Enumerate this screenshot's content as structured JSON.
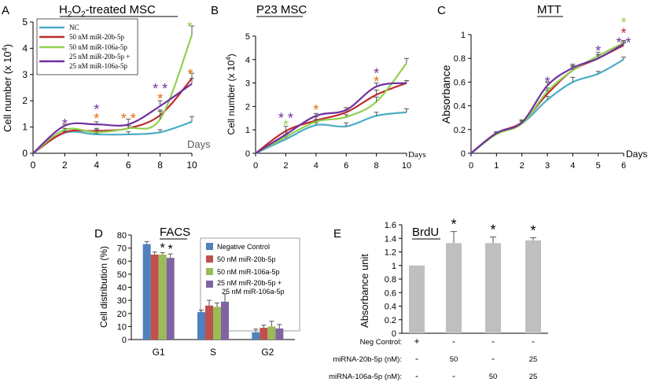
{
  "colors": {
    "nc": "#4bacc6",
    "r20b": "#c0282d",
    "r106a": "#92d050",
    "combo": "#7030a0",
    "orange": "#e46c0a",
    "fneg": "#4f81bd",
    "fr20b": "#c0504d",
    "fr106a": "#9bbb59",
    "fcombo": "#8064a2",
    "bar": "#bfbfbf"
  },
  "chart_data": [
    {
      "panel": "A",
      "type": "line",
      "title": "H2O2-treated MSC",
      "title_base": "H",
      "title_sub1": "2",
      "title_mid": "O",
      "title_sub2": "2",
      "title_rest": "-treated MSC",
      "ylabel": "Cell number (x 10",
      "ylabel_exp": "4",
      "ylabel_close": ")",
      "xlabel": "Days",
      "x": [
        0,
        2,
        4,
        6,
        8,
        10
      ],
      "xlim": [
        0,
        10
      ],
      "ylim": [
        0,
        5
      ],
      "xticks": [
        "0",
        "2",
        "4",
        "6",
        "8",
        "10"
      ],
      "yticks": [
        "0",
        "1",
        "2",
        "3",
        "4",
        "5"
      ],
      "legend": [
        "NC",
        "50 nM miR-20b-5p",
        "50 nM miR-106a-5p",
        "25 nM miR-20b-5p +",
        "25 nM miR-106a-5p"
      ],
      "series": [
        {
          "name": "NC",
          "color_key": "nc",
          "values": [
            0,
            0.78,
            0.72,
            0.72,
            0.8,
            1.2
          ],
          "err": [
            0,
            0.05,
            0.05,
            0.1,
            0.1,
            0.2
          ]
        },
        {
          "name": "50 nM miR-20b-5p",
          "color_key": "r20b",
          "values": [
            0,
            0.8,
            0.85,
            0.95,
            1.45,
            2.85
          ],
          "err": [
            0,
            0.05,
            0.1,
            0.1,
            0.2,
            0.2
          ]
        },
        {
          "name": "50 nM miR-106a-5p",
          "color_key": "r106a",
          "values": [
            0,
            0.9,
            0.8,
            0.95,
            1.3,
            4.5
          ],
          "err": [
            0,
            0.05,
            0.1,
            0.1,
            0.3,
            0.35
          ]
        },
        {
          "name": "25 nM miR-20b-5p + 25 nM miR-106a-5p",
          "color_key": "combo",
          "values": [
            0,
            1.05,
            1.1,
            1.1,
            1.8,
            2.65
          ],
          "err": [
            0,
            0.05,
            0.1,
            0.2,
            0.2,
            0.2
          ]
        }
      ],
      "stars": [
        {
          "x": 2,
          "y": 1.2,
          "text": "*",
          "color_key": "combo"
        },
        {
          "x": 4,
          "y": 1.75,
          "text": "*",
          "color_key": "combo"
        },
        {
          "x": 4,
          "y": 1.4,
          "text": "*",
          "color_key": "orange"
        },
        {
          "x": 6,
          "y": 1.4,
          "text": "* *",
          "color_key": "orange"
        },
        {
          "x": 8,
          "y": 2.55,
          "text": "* *",
          "color_key": "combo"
        },
        {
          "x": 8,
          "y": 2.15,
          "text": "*",
          "color_key": "orange"
        },
        {
          "x": 9.9,
          "y": 3.1,
          "text": "*",
          "color_key": "orange"
        },
        {
          "x": 9.85,
          "y": 4.9,
          "text": "*",
          "color_key": "r106a"
        }
      ]
    },
    {
      "panel": "B",
      "type": "line",
      "title": "P23 MSC",
      "ylabel": "Cell number (x 10",
      "ylabel_exp": "4",
      "ylabel_close": ")",
      "xlabel": "Days",
      "x": [
        0,
        2,
        4,
        6,
        8,
        10
      ],
      "xlim": [
        0,
        10
      ],
      "ylim": [
        0,
        5
      ],
      "xticks": [
        "0",
        "2",
        "4",
        "6",
        "8",
        "10"
      ],
      "yticks": [
        "0",
        "1",
        "2",
        "3",
        "4",
        "5"
      ],
      "series": [
        {
          "name": "NC",
          "color_key": "nc",
          "values": [
            0,
            0.6,
            1.2,
            1.15,
            1.6,
            1.75
          ],
          "err": [
            0,
            0.1,
            0.1,
            0.15,
            0.15,
            0.15
          ]
        },
        {
          "name": "50 nM miR-20b-5p",
          "color_key": "r20b",
          "values": [
            0,
            0.95,
            1.4,
            1.75,
            2.5,
            3.0
          ],
          "err": [
            0,
            0.2,
            0.15,
            0.1,
            0.2,
            0.1
          ]
        },
        {
          "name": "50 nM miR-106a-5p",
          "color_key": "r106a",
          "values": [
            0,
            0.7,
            1.35,
            1.55,
            2.2,
            3.85
          ],
          "err": [
            0,
            0.1,
            0.1,
            0.1,
            0.2,
            0.2
          ]
        },
        {
          "name": "25 nM miR-20b-5p + 25 nM miR-106a-5p",
          "color_key": "combo",
          "values": [
            0,
            0.8,
            1.6,
            1.85,
            2.85,
            3.0
          ],
          "err": [
            0,
            0.1,
            0.1,
            0.1,
            0.15,
            0.1
          ]
        }
      ],
      "stars": [
        {
          "x": 2,
          "y": 1.6,
          "text": "* *",
          "color_key": "combo"
        },
        {
          "x": 2,
          "y": 1.3,
          "text": "*",
          "color_key": "r106a"
        },
        {
          "x": 4,
          "y": 1.95,
          "text": "*",
          "color_key": "orange"
        },
        {
          "x": 8,
          "y": 3.5,
          "text": "*",
          "color_key": "combo"
        },
        {
          "x": 8,
          "y": 3.15,
          "text": "*",
          "color_key": "orange"
        }
      ]
    },
    {
      "panel": "C",
      "type": "line",
      "title": "MTT",
      "ylabel": "Absorbance",
      "xlabel": "Days",
      "x": [
        0,
        1,
        2,
        3,
        4,
        5,
        6
      ],
      "xlim": [
        0,
        6
      ],
      "ylim": [
        0,
        1
      ],
      "xticks": [
        "0",
        "1",
        "2",
        "3",
        "4",
        "5",
        "6"
      ],
      "yticks": [
        "0",
        "0.2",
        "0.4",
        "0.6",
        "0.8",
        "1"
      ],
      "series": [
        {
          "name": "NC",
          "color_key": "nc",
          "values": [
            0,
            0.17,
            0.25,
            0.45,
            0.6,
            0.67,
            0.79
          ],
          "err": [
            0,
            0.01,
            0.02,
            0.03,
            0.04,
            0.02,
            0.02
          ]
        },
        {
          "name": "50 nM miR-20b-5p",
          "color_key": "r20b",
          "values": [
            0,
            0.17,
            0.26,
            0.5,
            0.7,
            0.8,
            0.91
          ],
          "err": [
            0,
            0.01,
            0.02,
            0.03,
            0.04,
            0.03,
            0.02
          ]
        },
        {
          "name": "50 nM miR-106a-5p",
          "color_key": "r106a",
          "values": [
            0,
            0.16,
            0.25,
            0.52,
            0.7,
            0.82,
            0.93
          ],
          "err": [
            0,
            0.01,
            0.02,
            0.03,
            0.03,
            0.03,
            0.02
          ]
        },
        {
          "name": "25 nM miR-20b-5p + 25 nM miR-106a-5p",
          "color_key": "combo",
          "values": [
            0,
            0.17,
            0.26,
            0.57,
            0.72,
            0.8,
            0.92
          ],
          "err": [
            0,
            0.01,
            0.02,
            0.03,
            0.03,
            0.03,
            0.02
          ]
        }
      ],
      "stars": [
        {
          "x": 3,
          "y": 0.62,
          "text": "*",
          "color_key": "combo"
        },
        {
          "x": 5,
          "y": 0.88,
          "text": "*",
          "color_key": "combo"
        },
        {
          "x": 6,
          "y": 1.12,
          "text": "*",
          "color_key": "r106a"
        },
        {
          "x": 6,
          "y": 1.03,
          "text": "*",
          "color_key": "r20b"
        },
        {
          "x": 6,
          "y": 0.95,
          "text": "* *",
          "color_key": "combo"
        }
      ]
    },
    {
      "panel": "D",
      "type": "bar",
      "title": "FACS",
      "ylabel": "Cell distribution (%)",
      "categories": [
        "G1",
        "S",
        "G2"
      ],
      "ylim": [
        0,
        80
      ],
      "yticks": [
        "0",
        "10",
        "20",
        "30",
        "40",
        "50",
        "60",
        "70",
        "80"
      ],
      "legend": [
        "Negative Control",
        "50 nM miR-20b-5p",
        "50 nM miR-106a-5p",
        "25 nM miR-20b-5p +",
        "25 nM miR-106a-5p"
      ],
      "series": [
        {
          "name": "Negative Control",
          "color_key": "fneg",
          "values": [
            73,
            21,
            5.5
          ],
          "err": [
            2,
            1.5,
            2.5
          ]
        },
        {
          "name": "50 nM miR-20b-5p",
          "color_key": "fr20b",
          "values": [
            65,
            26,
            9
          ],
          "err": [
            2,
            4,
            2
          ]
        },
        {
          "name": "50 nM miR-106a-5p",
          "color_key": "fr106a",
          "values": [
            65,
            25,
            10
          ],
          "err": [
            1.5,
            3,
            4
          ]
        },
        {
          "name": "25 nM miR-20b-5p + 25 nM miR-106a-5p",
          "color_key": "fcombo",
          "values": [
            62.5,
            29,
            8.5
          ],
          "err": [
            3,
            6,
            3
          ]
        }
      ],
      "stars": [
        {
          "cat": 0,
          "series": 2,
          "text": "*"
        },
        {
          "cat": 0,
          "series": 3,
          "text": "*"
        }
      ]
    },
    {
      "panel": "E",
      "type": "bar",
      "title": "BrdU",
      "ylabel": "Absorbance unit",
      "ylim": [
        0,
        1.6
      ],
      "yticks": [
        "0",
        "0.2",
        "0.4",
        "0.6",
        "0.8",
        "1",
        "1.2",
        "1.4",
        "1.6"
      ],
      "values": [
        1.0,
        1.33,
        1.33,
        1.37
      ],
      "err": [
        0,
        0.17,
        0.09,
        0.04
      ],
      "stars": [
        "",
        "*",
        "*",
        "*"
      ],
      "rows": [
        {
          "label": "Neg Control:",
          "cells": [
            "+",
            "-",
            "-",
            "-"
          ]
        },
        {
          "label": "miRNA-20b-5p (nM):",
          "cells": [
            "-",
            "50",
            "-",
            "25"
          ]
        },
        {
          "label": "miRNA-106a-5p (nM):",
          "cells": [
            "-",
            "-",
            "50",
            "25"
          ]
        }
      ]
    }
  ],
  "panel_labels": [
    "A",
    "B",
    "C",
    "D",
    "E"
  ]
}
